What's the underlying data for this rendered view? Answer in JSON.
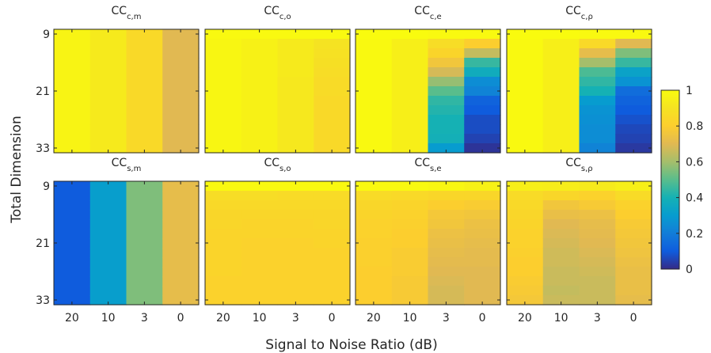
{
  "chart_data": {
    "type": "heatmap",
    "xlabel": "Signal to Noise Ratio (dB)",
    "ylabel": "Total Dimension",
    "x_categories": [
      "20",
      "10",
      "3",
      "0"
    ],
    "y_ticks": [
      "9",
      "21",
      "33"
    ],
    "rows_per_panel": 13,
    "colorbar": {
      "min": 0,
      "max": 1,
      "ticks": [
        "0",
        "0.2",
        "0.4",
        "0.6",
        "0.8",
        "1"
      ],
      "colormap": "parula",
      "position": "right"
    },
    "grid": false,
    "panels": [
      {
        "title_main": "CC",
        "title_sub": "c,m",
        "columns": [
          [
            0.97,
            0.97,
            0.97,
            0.97,
            0.97,
            0.97,
            0.97,
            0.97,
            0.97,
            0.97,
            0.97,
            0.97,
            0.97
          ],
          [
            0.93,
            0.93,
            0.93,
            0.93,
            0.93,
            0.93,
            0.93,
            0.93,
            0.93,
            0.93,
            0.93,
            0.93,
            0.93
          ],
          [
            0.85,
            0.85,
            0.85,
            0.85,
            0.85,
            0.85,
            0.85,
            0.85,
            0.85,
            0.85,
            0.85,
            0.85,
            0.85
          ],
          [
            0.7,
            0.7,
            0.7,
            0.7,
            0.7,
            0.7,
            0.7,
            0.7,
            0.7,
            0.7,
            0.7,
            0.7,
            0.7
          ]
        ]
      },
      {
        "title_main": "CC",
        "title_sub": "c,o",
        "columns": [
          [
            0.99,
            0.98,
            0.98,
            0.98,
            0.98,
            0.98,
            0.98,
            0.98,
            0.98,
            0.98,
            0.98,
            0.98,
            0.98
          ],
          [
            0.99,
            0.96,
            0.96,
            0.96,
            0.96,
            0.96,
            0.96,
            0.96,
            0.96,
            0.96,
            0.96,
            0.96,
            0.96
          ],
          [
            0.99,
            0.93,
            0.93,
            0.93,
            0.93,
            0.92,
            0.92,
            0.92,
            0.92,
            0.92,
            0.92,
            0.92,
            0.92
          ],
          [
            0.99,
            0.9,
            0.89,
            0.88,
            0.87,
            0.86,
            0.86,
            0.85,
            0.85,
            0.85,
            0.85,
            0.85,
            0.85
          ]
        ]
      },
      {
        "title_main": "CC",
        "title_sub": "c,e",
        "columns": [
          [
            1.0,
            0.99,
            0.99,
            0.99,
            0.99,
            0.99,
            0.99,
            0.99,
            0.99,
            0.99,
            0.99,
            0.99,
            0.99
          ],
          [
            1.0,
            0.95,
            0.95,
            0.95,
            0.95,
            0.95,
            0.95,
            0.95,
            0.95,
            0.95,
            0.95,
            0.95,
            0.95
          ],
          [
            0.99,
            0.87,
            0.83,
            0.76,
            0.68,
            0.58,
            0.5,
            0.44,
            0.42,
            0.4,
            0.4,
            0.39,
            0.3
          ],
          [
            0.99,
            0.8,
            0.65,
            0.45,
            0.37,
            0.25,
            0.22,
            0.12,
            0.1,
            0.07,
            0.07,
            0.05,
            0.02
          ]
        ]
      },
      {
        "title_main": "CC",
        "title_sub": "c,ρ",
        "columns": [
          [
            1.0,
            0.99,
            0.99,
            0.99,
            0.99,
            0.99,
            0.99,
            0.99,
            0.99,
            0.99,
            0.99,
            0.99,
            0.99
          ],
          [
            1.0,
            0.95,
            0.95,
            0.95,
            0.95,
            0.95,
            0.95,
            0.95,
            0.95,
            0.95,
            0.95,
            0.95,
            0.95
          ],
          [
            0.99,
            0.85,
            0.72,
            0.6,
            0.48,
            0.44,
            0.4,
            0.3,
            0.27,
            0.26,
            0.25,
            0.25,
            0.22
          ],
          [
            0.99,
            0.7,
            0.55,
            0.45,
            0.33,
            0.27,
            0.15,
            0.12,
            0.1,
            0.08,
            0.06,
            0.05,
            0.03
          ]
        ]
      },
      {
        "title_main": "CC",
        "title_sub": "s,m",
        "columns": [
          [
            0.1,
            0.1,
            0.1,
            0.1,
            0.1,
            0.1,
            0.1,
            0.1,
            0.1,
            0.1,
            0.1,
            0.1,
            0.1
          ],
          [
            0.31,
            0.31,
            0.31,
            0.31,
            0.31,
            0.31,
            0.31,
            0.31,
            0.31,
            0.31,
            0.31,
            0.31,
            0.31
          ],
          [
            0.55,
            0.55,
            0.55,
            0.55,
            0.55,
            0.55,
            0.55,
            0.55,
            0.55,
            0.55,
            0.55,
            0.55,
            0.55
          ],
          [
            0.72,
            0.72,
            0.72,
            0.72,
            0.72,
            0.72,
            0.72,
            0.72,
            0.72,
            0.72,
            0.72,
            0.72,
            0.72
          ]
        ]
      },
      {
        "title_main": "CC",
        "title_sub": "s,o",
        "columns": [
          [
            0.99,
            0.87,
            0.85,
            0.84,
            0.84,
            0.83,
            0.83,
            0.83,
            0.83,
            0.83,
            0.82,
            0.82,
            0.82
          ],
          [
            0.99,
            0.87,
            0.85,
            0.84,
            0.83,
            0.83,
            0.82,
            0.82,
            0.82,
            0.82,
            0.82,
            0.82,
            0.82
          ],
          [
            0.99,
            0.86,
            0.85,
            0.84,
            0.83,
            0.83,
            0.82,
            0.82,
            0.82,
            0.82,
            0.82,
            0.82,
            0.82
          ],
          [
            0.99,
            0.86,
            0.85,
            0.84,
            0.84,
            0.83,
            0.83,
            0.82,
            0.82,
            0.82,
            0.82,
            0.82,
            0.82
          ]
        ]
      },
      {
        "title_main": "CC",
        "title_sub": "s,e",
        "columns": [
          [
            0.99,
            0.86,
            0.84,
            0.83,
            0.82,
            0.82,
            0.81,
            0.81,
            0.81,
            0.8,
            0.8,
            0.8,
            0.8
          ],
          [
            0.99,
            0.85,
            0.83,
            0.82,
            0.81,
            0.8,
            0.8,
            0.79,
            0.79,
            0.79,
            0.78,
            0.78,
            0.78
          ],
          [
            0.98,
            0.84,
            0.8,
            0.77,
            0.76,
            0.74,
            0.73,
            0.72,
            0.71,
            0.7,
            0.69,
            0.68,
            0.68
          ],
          [
            0.96,
            0.84,
            0.79,
            0.76,
            0.74,
            0.73,
            0.72,
            0.71,
            0.71,
            0.7,
            0.7,
            0.7,
            0.7
          ]
        ]
      },
      {
        "title_main": "CC",
        "title_sub": "s,ρ",
        "columns": [
          [
            0.95,
            0.86,
            0.85,
            0.84,
            0.83,
            0.82,
            0.82,
            0.81,
            0.8,
            0.8,
            0.79,
            0.78,
            0.77
          ],
          [
            0.94,
            0.84,
            0.76,
            0.73,
            0.7,
            0.69,
            0.68,
            0.67,
            0.67,
            0.66,
            0.66,
            0.65,
            0.66
          ],
          [
            0.93,
            0.82,
            0.78,
            0.74,
            0.72,
            0.71,
            0.7,
            0.69,
            0.68,
            0.67,
            0.66,
            0.66,
            0.66
          ],
          [
            0.95,
            0.86,
            0.82,
            0.8,
            0.78,
            0.77,
            0.76,
            0.75,
            0.74,
            0.73,
            0.73,
            0.73,
            0.72
          ]
        ]
      }
    ]
  }
}
